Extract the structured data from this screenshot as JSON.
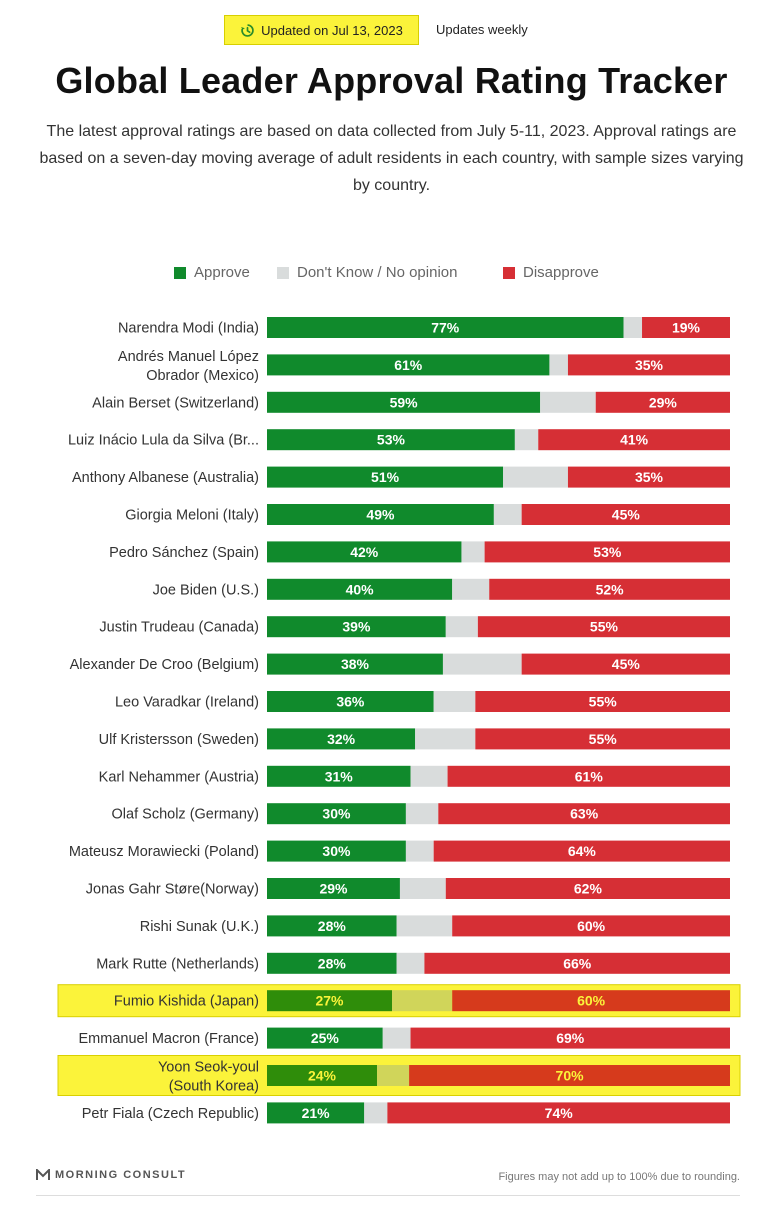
{
  "header": {
    "updated_label": "Updated on Jul 13, 2023",
    "frequency_label": "Updates weekly",
    "title": "Global Leader Approval Rating Tracker",
    "subtitle": "The latest approval ratings are based on data collected from July 5-11, 2023. Approval ratings are based on a seven-day moving average of adult residents in each country, with sample sizes varying by country."
  },
  "legend": {
    "approve": "Approve",
    "dont_know": "Don't Know / No opinion",
    "disapprove": "Disapprove"
  },
  "colors": {
    "approve": "#108a2c",
    "dont_know": "#d9dcdc",
    "disapprove": "#d62f35",
    "highlight_fill": "#fbf33a",
    "highlight_border": "#d9d000",
    "highlight_approve": "#2f8d0a",
    "highlight_dont_know": "#d0d55a",
    "highlight_disapprove": "#d63a1c",
    "highlight_label": "#fbf33a"
  },
  "chart_data": {
    "type": "bar",
    "orientation": "horizontal-stacked",
    "xlim": [
      0,
      100
    ],
    "categories": [
      "Narendra Modi (India)",
      "Andrés Manuel López Obrador (Mexico)",
      "Alain Berset (Switzerland)",
      "Luiz Inácio Lula da Silva (Br...",
      "Anthony Albanese (Australia)",
      "Giorgia Meloni (Italy)",
      "Pedro Sánchez (Spain)",
      "Joe Biden (U.S.)",
      "Justin Trudeau (Canada)",
      "Alexander De Croo (Belgium)",
      "Leo Varadkar (Ireland)",
      "Ulf Kristersson (Sweden)",
      "Karl Nehammer (Austria)",
      "Olaf Scholz (Germany)",
      "Mateusz Morawiecki (Poland)",
      "Jonas Gahr Støre(Norway)",
      "Rishi Sunak (U.K.)",
      "Mark Rutte (Netherlands)",
      "Fumio Kishida (Japan)",
      "Emmanuel Macron (France)",
      "Yoon Seok-youl (South Korea)",
      "Petr Fiala (Czech Republic)"
    ],
    "label_lines": [
      [
        "Narendra Modi (India)"
      ],
      [
        "Andrés Manuel López",
        "Obrador (Mexico)"
      ],
      [
        "Alain Berset (Switzerland)"
      ],
      [
        "Luiz Inácio Lula da Silva (Br..."
      ],
      [
        "Anthony Albanese (Australia)"
      ],
      [
        "Giorgia Meloni (Italy)"
      ],
      [
        "Pedro Sánchez (Spain)"
      ],
      [
        "Joe Biden (U.S.)"
      ],
      [
        "Justin Trudeau (Canada)"
      ],
      [
        "Alexander De Croo (Belgium)"
      ],
      [
        "Leo Varadkar (Ireland)"
      ],
      [
        "Ulf Kristersson (Sweden)"
      ],
      [
        "Karl Nehammer (Austria)"
      ],
      [
        "Olaf Scholz (Germany)"
      ],
      [
        "Mateusz Morawiecki (Poland)"
      ],
      [
        "Jonas Gahr Støre(Norway)"
      ],
      [
        "Rishi Sunak (U.K.)"
      ],
      [
        "Mark Rutte (Netherlands)"
      ],
      [
        "Fumio Kishida (Japan)"
      ],
      [
        "Emmanuel Macron (France)"
      ],
      [
        "Yoon Seok-youl",
        "(South Korea)"
      ],
      [
        "Petr Fiala (Czech Republic)"
      ]
    ],
    "series": [
      {
        "name": "Approve",
        "values": [
          77,
          61,
          59,
          53,
          51,
          49,
          42,
          40,
          39,
          38,
          36,
          32,
          31,
          30,
          30,
          29,
          28,
          28,
          27,
          25,
          24,
          21
        ]
      },
      {
        "name": "Don't Know / No opinion",
        "values": [
          4,
          4,
          12,
          5,
          14,
          6,
          5,
          8,
          7,
          17,
          9,
          13,
          8,
          7,
          6,
          10,
          12,
          6,
          13,
          6,
          7,
          5
        ]
      },
      {
        "name": "Disapprove",
        "values": [
          19,
          35,
          29,
          41,
          35,
          45,
          53,
          52,
          55,
          45,
          55,
          55,
          61,
          63,
          64,
          62,
          60,
          66,
          60,
          69,
          70,
          74
        ]
      }
    ],
    "value_labels": {
      "approve": [
        "77%",
        "61%",
        "59%",
        "53%",
        "51%",
        "49%",
        "42%",
        "40%",
        "39%",
        "38%",
        "36%",
        "32%",
        "31%",
        "30%",
        "30%",
        "29%",
        "28%",
        "28%",
        "27%",
        "25%",
        "24%",
        "21%"
      ],
      "disapprove": [
        "19%",
        "35%",
        "29%",
        "41%",
        "35%",
        "45%",
        "53%",
        "52%",
        "55%",
        "45%",
        "55%",
        "55%",
        "61%",
        "63%",
        "64%",
        "62%",
        "60%",
        "66%",
        "60%",
        "69%",
        "70%",
        "74%"
      ]
    },
    "highlighted": [
      18,
      20
    ],
    "legend_position": "top-center",
    "grid": false
  },
  "footer": {
    "brand": "MORNING CONSULT",
    "note": "Figures may not add up to 100% due to rounding."
  }
}
